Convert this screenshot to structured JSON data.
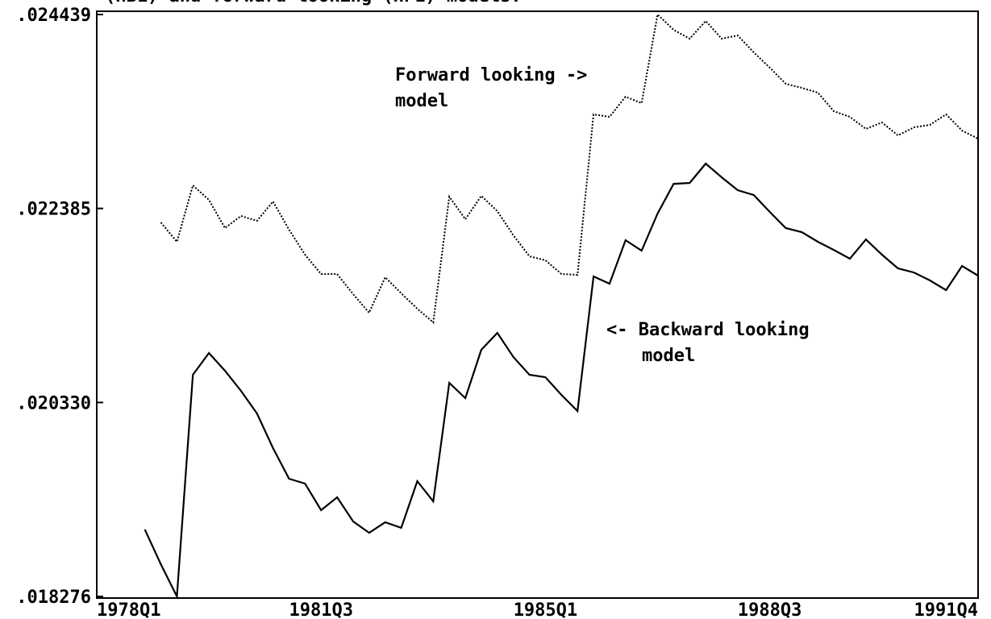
{
  "chart_data": {
    "type": "line",
    "title": "(HBL) and forward looking (HFL) models.",
    "categories": [
      "1978Q1",
      null,
      null,
      null,
      null,
      null,
      null,
      null,
      null,
      null,
      null,
      null,
      null,
      null,
      "1981Q3",
      null,
      null,
      null,
      null,
      null,
      null,
      null,
      null,
      null,
      null,
      null,
      null,
      null,
      "1985Q1",
      null,
      null,
      null,
      null,
      null,
      null,
      null,
      null,
      null,
      null,
      null,
      null,
      null,
      "1988Q3",
      null,
      null,
      null,
      null,
      null,
      null,
      null,
      null,
      null,
      null,
      null,
      null,
      "1991Q4"
    ],
    "series": [
      {
        "color": "#000000",
        "dash": "solid",
        "values": [
          null,
          null,
          null,
          0.018985,
          0.018617,
          0.018276,
          0.020623,
          0.020854,
          0.020666,
          0.020453,
          0.020214,
          0.019847,
          0.019522,
          0.019471,
          0.019189,
          0.019326,
          0.01907,
          0.01895,
          0.019061,
          0.019002,
          0.019497,
          0.019283,
          0.020538,
          0.020376,
          0.020888,
          0.021067,
          0.020811,
          0.020623,
          0.020598,
          0.02041,
          0.020239,
          0.021665,
          0.021588,
          0.022049,
          0.021938,
          0.022331,
          0.022646,
          0.022655,
          0.02286,
          0.022715,
          0.022578,
          0.022527,
          0.022348,
          0.022177,
          0.022134,
          0.022032,
          0.021946,
          0.021853,
          0.022057,
          0.021895,
          0.02175,
          0.021707,
          0.021622,
          0.02152,
          0.021776,
          0.021673
        ]
      },
      {
        "color": "#000000",
        "dash": "dotted",
        "values": [
          null,
          null,
          null,
          null,
          0.022237,
          0.022032,
          0.022629,
          0.022476,
          0.022177,
          0.022305,
          0.022254,
          0.022459,
          0.02216,
          0.021895,
          0.02169,
          0.02169,
          0.021477,
          0.021281,
          0.021656,
          0.021486,
          0.021323,
          0.021178,
          0.02251,
          0.022271,
          0.022518,
          0.022356,
          0.0221,
          0.021878,
          0.021836,
          0.02169,
          0.021682,
          0.023381,
          0.023355,
          0.023568,
          0.0235,
          0.024439,
          0.024277,
          0.024183,
          0.024371,
          0.024183,
          0.024217,
          0.024038,
          0.023876,
          0.023705,
          0.023662,
          0.023611,
          0.023415,
          0.023355,
          0.023227,
          0.023295,
          0.023159,
          0.023244,
          0.02327,
          0.023381,
          0.02321,
          0.023124
        ]
      }
    ],
    "ylim": [
      0.018276,
      0.024439
    ],
    "yticks": [
      {
        "value": 0.018276,
        "label": ".018276"
      },
      {
        "value": 0.02033,
        "label": ".020330"
      },
      {
        "value": 0.022385,
        "label": ".022385"
      },
      {
        "value": 0.024439,
        "label": ".024439"
      }
    ],
    "annotations": [
      {
        "lines": [
          "Forward looking ->",
          "model"
        ]
      },
      {
        "lines": [
          "<- Backward looking",
          "model"
        ]
      }
    ]
  }
}
